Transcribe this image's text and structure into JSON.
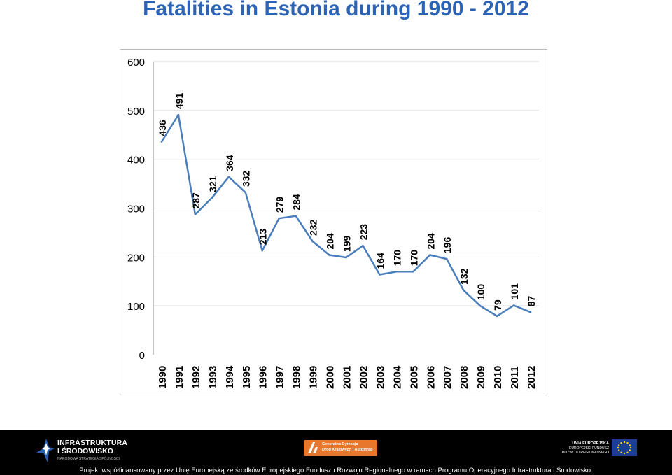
{
  "title": "Fatalities in Estonia during 1990 - 2012",
  "chart_data": {
    "type": "line",
    "title": "Fatalities in Estonia during 1990 - 2012",
    "categories": [
      "1990",
      "1991",
      "1992",
      "1993",
      "1994",
      "1995",
      "1996",
      "1997",
      "1998",
      "1999",
      "2000",
      "2001",
      "2002",
      "2003",
      "2004",
      "2005",
      "2006",
      "2007",
      "2008",
      "2009",
      "2010",
      "2011",
      "2012"
    ],
    "series": [
      {
        "values": [
          436,
          491,
          287,
          321,
          364,
          332,
          213,
          279,
          284,
          232,
          204,
          199,
          223,
          164,
          170,
          170,
          204,
          196,
          132,
          100,
          79,
          101,
          87
        ]
      }
    ],
    "data_labels": [
      "436",
      "491",
      "287",
      "321",
      "364",
      "332",
      "213",
      "279",
      "284",
      "232",
      "204",
      "199",
      "223",
      "164",
      "170",
      "170",
      "204",
      "196",
      "132",
      "100",
      "79",
      "101",
      "87"
    ],
    "y_ticks": [
      "0",
      "100",
      "200",
      "300",
      "400",
      "500",
      "600"
    ],
    "ylim": [
      0,
      600
    ],
    "xlabel": "",
    "ylabel": "",
    "grid": "horizontal",
    "legend": "none",
    "line_color": "#4a7ebb",
    "gridline_color": "#d9d9d9"
  },
  "footer": {
    "funding_text": "Projekt współfinansowany przez Unię Europejską ze środków Europejskiego Funduszu Rozwoju Regionalnego w ramach Programu Operacyjnego Infrastruktura i Środowisko.",
    "logo_left_line1": "INFRASTRUKTURA",
    "logo_left_line2": "I ŚRODOWISKO",
    "logo_left_line3": "NARODOWA STRATEGIA SPÓJNOŚCI",
    "logo_mid_line1": "Generalna Dyrekcja",
    "logo_mid_line2": "Dróg Krajowych i Autostrad",
    "logo_right_line1": "UNIA EUROPEJSKA",
    "logo_right_line2": "EUROPEJSKI FUNDUSZ",
    "logo_right_line3": "ROZWOJU REGIONALNEGO"
  }
}
